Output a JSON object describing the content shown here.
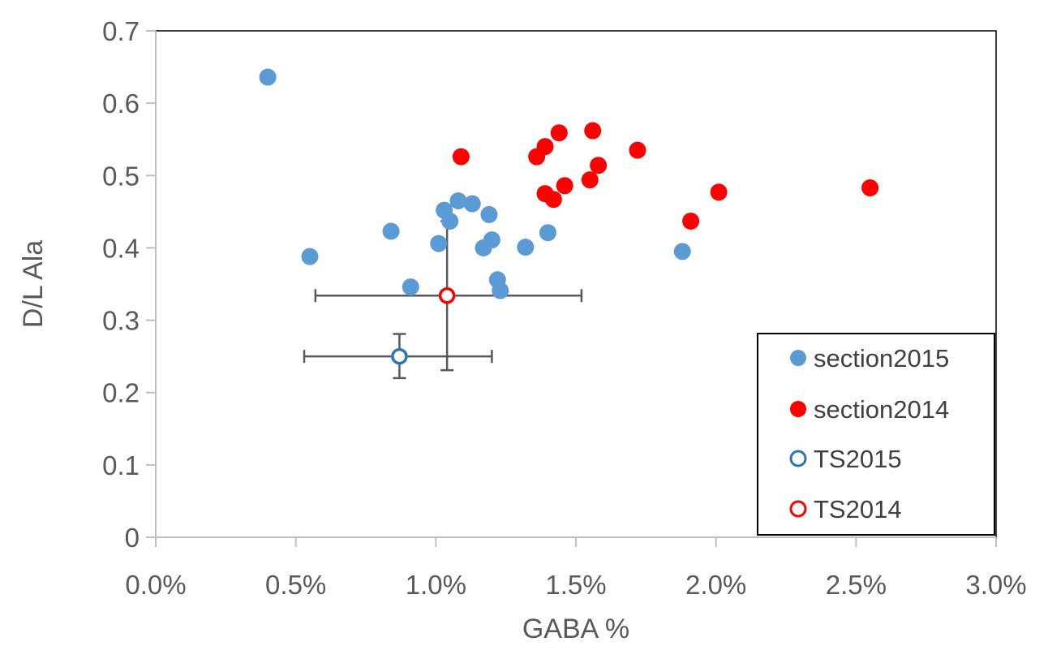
{
  "chart_data": {
    "type": "scatter",
    "title": "",
    "xlabel": "GABA %",
    "ylabel": "D/L Ala",
    "xlim": [
      0,
      0.03
    ],
    "ylim": [
      0,
      0.7
    ],
    "x_ticks": [
      0,
      0.005,
      0.01,
      0.015,
      0.02,
      0.025,
      0.03
    ],
    "x_tick_labels": [
      "0.0%",
      "0.5%",
      "1.0%",
      "1.5%",
      "2.0%",
      "2.5%",
      "3.0%"
    ],
    "y_ticks": [
      0,
      0.1,
      0.2,
      0.3,
      0.4,
      0.5,
      0.6,
      0.7
    ],
    "y_tick_labels": [
      "0",
      "0.1",
      "0.2",
      "0.3",
      "0.4",
      "0.5",
      "0.6",
      "0.7"
    ],
    "grid": false,
    "legend_position": "bottom-right",
    "series": [
      {
        "name": "section2015",
        "color": "#5B9BD5",
        "marker": "filled-circle",
        "points": [
          {
            "x": 0.004,
            "y": 0.636
          },
          {
            "x": 0.0055,
            "y": 0.388
          },
          {
            "x": 0.0084,
            "y": 0.423
          },
          {
            "x": 0.0091,
            "y": 0.346
          },
          {
            "x": 0.0101,
            "y": 0.406
          },
          {
            "x": 0.0103,
            "y": 0.452
          },
          {
            "x": 0.0105,
            "y": 0.437
          },
          {
            "x": 0.0108,
            "y": 0.465
          },
          {
            "x": 0.0113,
            "y": 0.461
          },
          {
            "x": 0.0117,
            "y": 0.4
          },
          {
            "x": 0.0119,
            "y": 0.446
          },
          {
            "x": 0.012,
            "y": 0.411
          },
          {
            "x": 0.0122,
            "y": 0.356
          },
          {
            "x": 0.0123,
            "y": 0.341
          },
          {
            "x": 0.0132,
            "y": 0.401
          },
          {
            "x": 0.014,
            "y": 0.421
          },
          {
            "x": 0.0188,
            "y": 0.395
          }
        ]
      },
      {
        "name": "section2014",
        "color": "#FF0000",
        "marker": "filled-circle",
        "points": [
          {
            "x": 0.0109,
            "y": 0.526
          },
          {
            "x": 0.0136,
            "y": 0.526
          },
          {
            "x": 0.0139,
            "y": 0.54
          },
          {
            "x": 0.0139,
            "y": 0.475
          },
          {
            "x": 0.0142,
            "y": 0.467
          },
          {
            "x": 0.0144,
            "y": 0.559
          },
          {
            "x": 0.0146,
            "y": 0.486
          },
          {
            "x": 0.0155,
            "y": 0.494
          },
          {
            "x": 0.0156,
            "y": 0.562
          },
          {
            "x": 0.0158,
            "y": 0.514
          },
          {
            "x": 0.0172,
            "y": 0.535
          },
          {
            "x": 0.0191,
            "y": 0.437
          },
          {
            "x": 0.0201,
            "y": 0.477
          },
          {
            "x": 0.0255,
            "y": 0.483
          }
        ]
      },
      {
        "name": "TS2015",
        "color": "#2E75B6",
        "marker": "open-circle",
        "points": [
          {
            "x": 0.0087,
            "y": 0.25,
            "x_err": [
              0.0053,
              0.012
            ],
            "y_err": [
              0.22,
              0.281
            ]
          }
        ]
      },
      {
        "name": "TS2014",
        "color": "#FF0000",
        "marker": "open-circle",
        "points": [
          {
            "x": 0.0104,
            "y": 0.334,
            "x_err": [
              0.0057,
              0.0152
            ],
            "y_err": [
              0.231,
              0.437
            ]
          }
        ]
      }
    ]
  },
  "colors": {
    "axis": "#BFBFBF",
    "frame": "#000000",
    "error_bar": "#595959",
    "text": "#595959"
  }
}
